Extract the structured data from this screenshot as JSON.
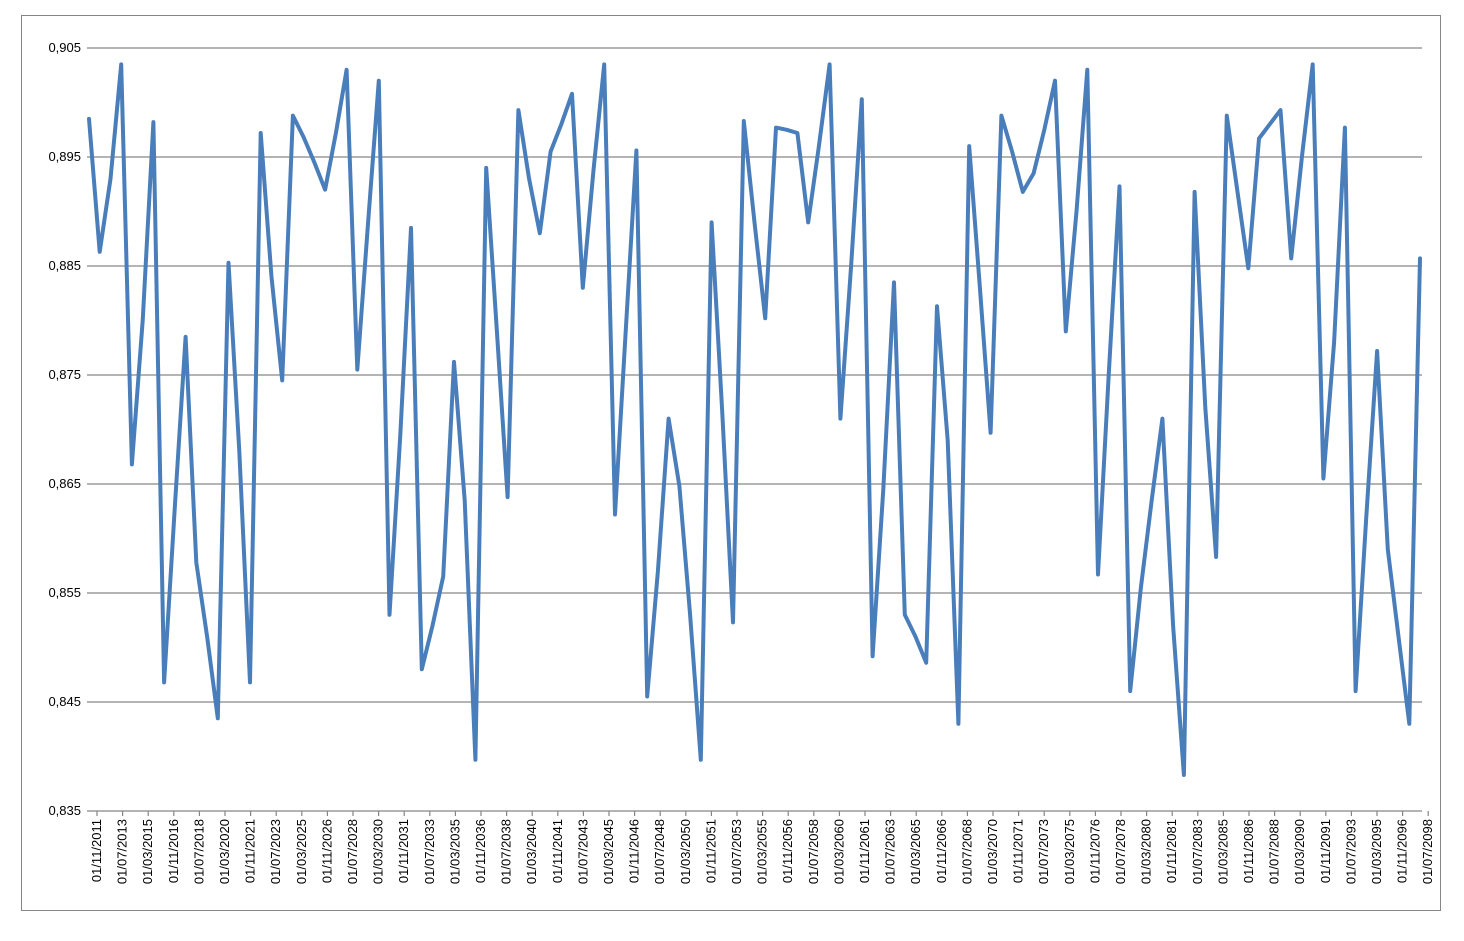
{
  "chart_data": {
    "type": "line",
    "title": "",
    "xlabel": "",
    "ylabel": "",
    "ylim": [
      0.835,
      0.905
    ],
    "yticks": [
      "0,905",
      "0,895",
      "0,885",
      "0,875",
      "0,865",
      "0,855",
      "0,845",
      "0,835"
    ],
    "ytick_values": [
      0.905,
      0.895,
      0.885,
      0.875,
      0.865,
      0.855,
      0.845,
      0.835
    ],
    "grid": true,
    "legend": "none",
    "x_tick_labels": [
      "01/11/2011",
      "01/07/2013",
      "01/03/2015",
      "01/11/2016",
      "01/07/2018",
      "01/03/2020",
      "01/11/2021",
      "01/07/2023",
      "01/03/2025",
      "01/11/2026",
      "01/07/2028",
      "01/03/2030",
      "01/11/2031",
      "01/07/2033",
      "01/03/2035",
      "01/11/2036",
      "01/07/2038",
      "01/03/2040",
      "01/11/2041",
      "01/07/2043",
      "01/03/2045",
      "01/11/2046",
      "01/07/2048",
      "01/03/2050",
      "01/11/2051",
      "01/07/2053",
      "01/03/2055",
      "01/11/2056",
      "01/07/2058",
      "01/03/2060",
      "01/11/2061",
      "01/07/2063",
      "01/03/2065",
      "01/11/2066",
      "01/07/2068",
      "01/03/2070",
      "01/11/2071",
      "01/07/2073",
      "01/03/2075",
      "01/11/2076",
      "01/07/2078",
      "01/03/2080",
      "01/11/2081",
      "01/07/2083",
      "01/03/2085",
      "01/11/2086",
      "01/07/2088",
      "01/03/2090",
      "01/11/2091",
      "01/07/2093",
      "01/03/2095",
      "01/11/2096",
      "01/07/2098"
    ],
    "series": [
      {
        "color": "#4a7ebb",
        "values": [
          0.8985,
          0.8863,
          0.893,
          0.9035,
          0.8668,
          0.88,
          0.8982,
          0.8468,
          0.863,
          0.8785,
          0.8578,
          0.851,
          0.8435,
          0.8853,
          0.868,
          0.8468,
          0.8972,
          0.884,
          0.8745,
          0.8988,
          0.8968,
          0.8945,
          0.892,
          0.8972,
          0.903,
          0.8755,
          0.889,
          0.902,
          0.853,
          0.8695,
          0.8885,
          0.848,
          0.852,
          0.8565,
          0.8762,
          0.8635,
          0.8397,
          0.894,
          0.879,
          0.8638,
          0.8993,
          0.893,
          0.888,
          0.8955,
          0.898,
          0.9008,
          0.883,
          0.8938,
          0.9035,
          0.8622,
          0.879,
          0.8956,
          0.8455,
          0.857,
          0.871,
          0.8648,
          0.853,
          0.8397,
          0.889,
          0.8715,
          0.8523,
          0.8983,
          0.889,
          0.8802,
          0.8977,
          0.8975,
          0.8972,
          0.889,
          0.896,
          0.9035,
          0.871,
          0.885,
          0.9003,
          0.8492,
          0.8645,
          0.8835,
          0.853,
          0.851,
          0.8486,
          0.8813,
          0.869,
          0.843,
          0.896,
          0.883,
          0.8697,
          0.8988,
          0.8955,
          0.8918,
          0.8935,
          0.8975,
          0.902,
          0.879,
          0.89,
          0.903,
          0.8567,
          0.875,
          0.8923,
          0.846,
          0.8555,
          0.8635,
          0.871,
          0.852,
          0.8383,
          0.8918,
          0.872,
          0.8583,
          0.8988,
          0.8918,
          0.8848,
          0.8967,
          0.898,
          0.8993,
          0.8857,
          0.895,
          0.9035,
          0.8655,
          0.878,
          0.8977,
          0.846,
          0.862,
          0.8772,
          0.859,
          0.851,
          0.843,
          0.8857
        ]
      }
    ]
  }
}
